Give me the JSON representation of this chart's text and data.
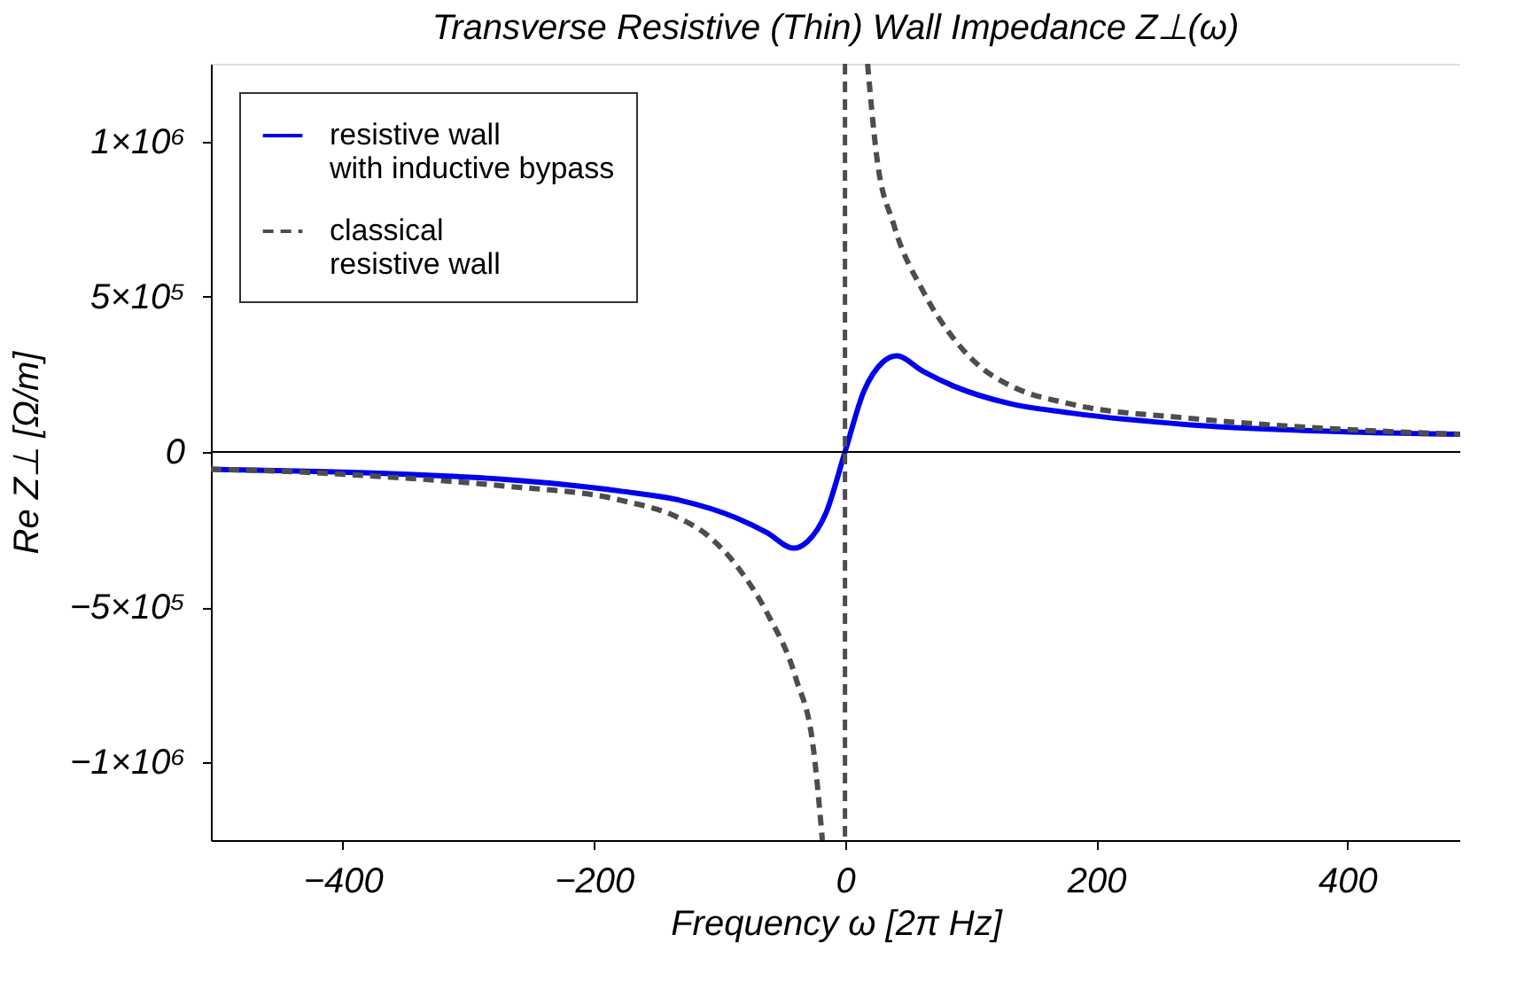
{
  "chart_data": {
    "type": "line",
    "title": "Transverse Resistive (Thin) Wall Impedance  Z⊥(ω)",
    "xlabel": "Frequency  ω  [2π  Hz]",
    "ylabel": "Re  Z⊥  [Ω/m]",
    "xlim": [
      -505,
      490
    ],
    "ylim": [
      -1250000,
      1250000
    ],
    "xticks": [
      {
        "value": -400,
        "label": "−400"
      },
      {
        "value": -200,
        "label": "−200"
      },
      0,
      200,
      400
    ],
    "yticks": [
      {
        "value": -1000000,
        "label": "−1×10⁶"
      },
      {
        "value": -500000,
        "label": "−5×10⁵"
      },
      0,
      {
        "value": 500000,
        "label": "5×10⁵"
      },
      {
        "value": 1000000,
        "label": "1×10⁶"
      }
    ],
    "grid": false,
    "legend": "top left",
    "marker": "none",
    "series": [
      {
        "name": "resistive wall\nwith inductive bypass",
        "color": "#0000ee",
        "line_style": "solid",
        "x": [
          -505,
          -490,
          -366,
          -273,
          -179,
          -132,
          -86,
          -62,
          -41,
          -30,
          -15,
          0,
          15,
          30,
          41,
          62,
          86,
          132,
          179,
          273,
          366,
          490
        ],
        "values": [
          -56000,
          -57000,
          -69000,
          -88000,
          -126000,
          -155000,
          -213000,
          -260000,
          -310000,
          -289000,
          -195000,
          0,
          195000,
          289000,
          310000,
          260000,
          213000,
          155000,
          126000,
          88000,
          69000,
          57000
        ]
      },
      {
        "name": "classical\nresistive  wall",
        "color": "#4d4d4d",
        "line_style": "dashed",
        "x": [
          -505,
          -490,
          -366,
          -273,
          -179,
          -132,
          -109,
          -86,
          -62,
          -39,
          -25,
          -18,
          null,
          18,
          25,
          39,
          62,
          86,
          109,
          132,
          179,
          273,
          366,
          490
        ],
        "values": [
          -56000,
          -57000,
          -80000,
          -109000,
          -155000,
          -213000,
          -270000,
          -368000,
          -519000,
          -730000,
          -960000,
          -1250000,
          null,
          1250000,
          960000,
          730000,
          519000,
          368000,
          270000,
          213000,
          155000,
          109000,
          80000,
          57000
        ]
      }
    ],
    "ref_lines": [
      {
        "axis": "y",
        "value": 0,
        "color": "#000000",
        "line_style": "solid"
      },
      {
        "axis": "x",
        "value": 0,
        "color": "#4d4d4d",
        "line_style": "dashed"
      }
    ]
  }
}
